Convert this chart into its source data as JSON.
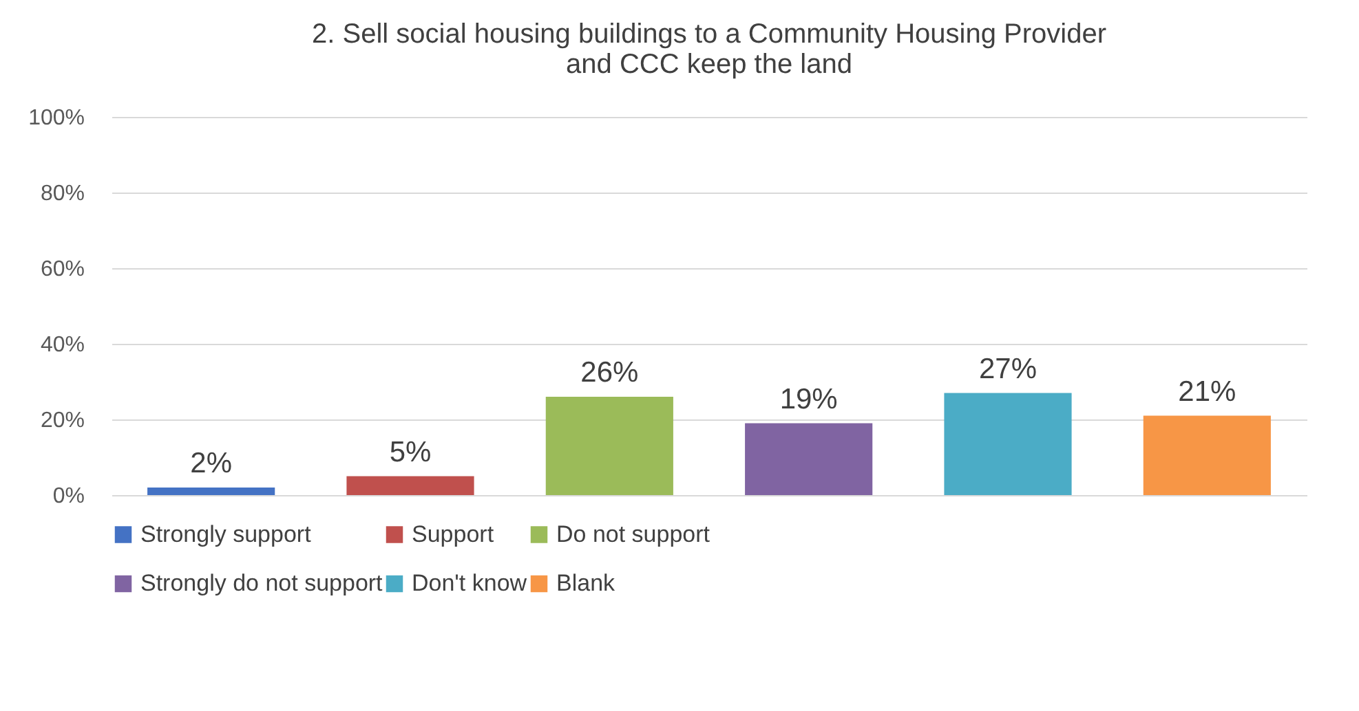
{
  "chart_data": {
    "type": "bar",
    "title": [
      "2. Sell social housing buildings to a Community Housing Provider",
      "and CCC keep the land"
    ],
    "categories": [
      null,
      null,
      null,
      null,
      null,
      null
    ],
    "series": [
      {
        "name": "Strongly support",
        "color": "#4472c4",
        "values": [
          2,
          null,
          null,
          null,
          null,
          null
        ],
        "value_labels": [
          "2%",
          null,
          null,
          null,
          null,
          null
        ]
      },
      {
        "name": "Support",
        "color": "#c0504d",
        "values": [
          null,
          5,
          null,
          null,
          null,
          null
        ],
        "value_labels": [
          null,
          "5%",
          null,
          null,
          null,
          null
        ]
      },
      {
        "name": "Do not support",
        "color": "#9bbb59",
        "values": [
          null,
          null,
          26,
          null,
          null,
          null
        ],
        "value_labels": [
          null,
          null,
          "26%",
          null,
          null,
          null
        ]
      },
      {
        "name": "Strongly do not support",
        "color": "#8064a2",
        "values": [
          null,
          null,
          null,
          19,
          null,
          null
        ],
        "value_labels": [
          null,
          null,
          null,
          "19%",
          null,
          null
        ]
      },
      {
        "name": "Don't know",
        "color": "#4bacc6",
        "values": [
          null,
          null,
          null,
          null,
          27,
          null
        ],
        "value_labels": [
          null,
          null,
          null,
          null,
          "27%",
          null
        ]
      },
      {
        "name": "Blank",
        "color": "#f79646",
        "values": [
          null,
          null,
          null,
          null,
          null,
          21
        ],
        "value_labels": [
          null,
          null,
          null,
          null,
          null,
          "21%"
        ]
      }
    ],
    "ylim": [
      0,
      100
    ],
    "yticks": [
      {
        "value": 0,
        "label": "0%"
      },
      {
        "value": 20,
        "label": "20%"
      },
      {
        "value": 40,
        "label": "40%"
      },
      {
        "value": 60,
        "label": "60%"
      },
      {
        "value": 80,
        "label": "80%"
      },
      {
        "value": 100,
        "label": "100%"
      }
    ],
    "grid": "y",
    "legend": "bottom"
  }
}
